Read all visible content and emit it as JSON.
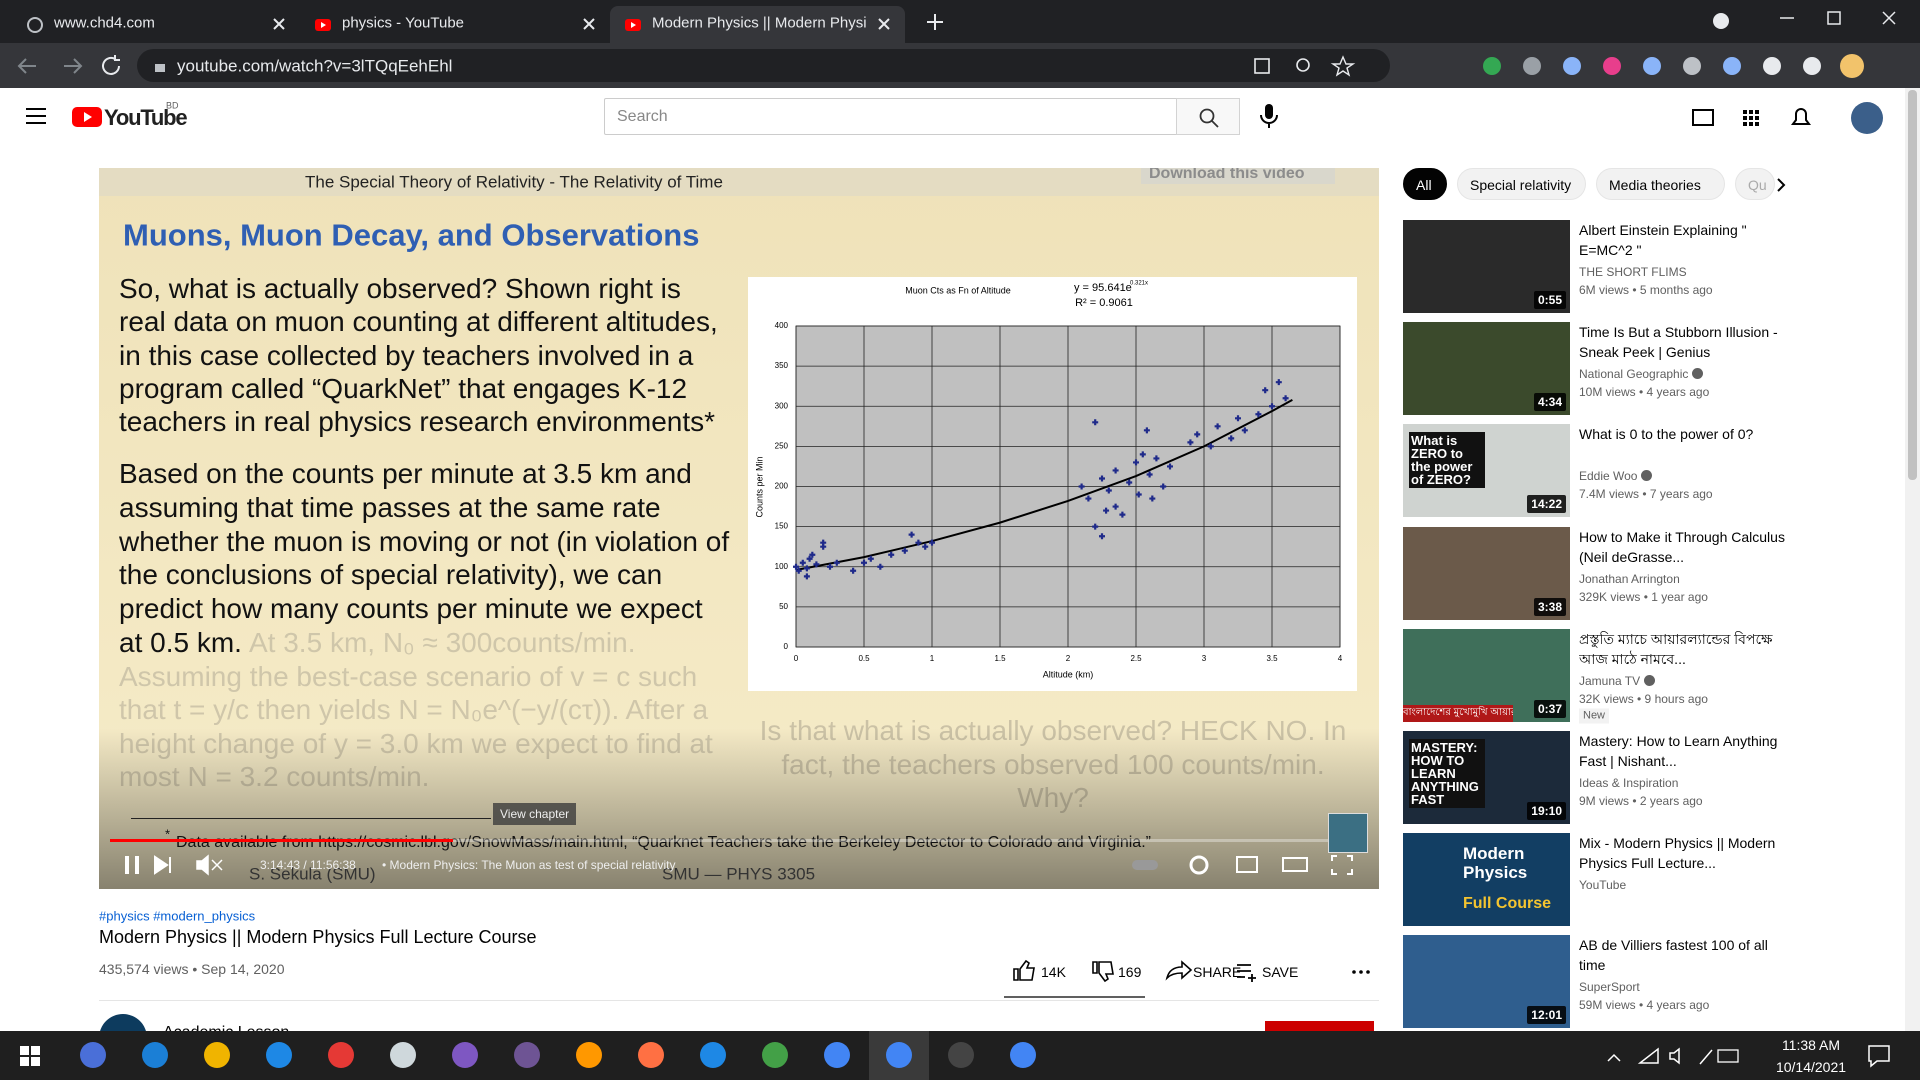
{
  "browser": {
    "tabs": [
      "www.chd4.com",
      "physics - YouTube",
      "Modern Physics || Modern Physic"
    ],
    "url": "youtube.com/watch?v=3lTQqEehEhl"
  },
  "header": {
    "logo": "YouTube",
    "country": "BD",
    "search": "Search"
  },
  "video": {
    "slide": {
      "banner": "The Special Theory of Relativity - The Relativity of Time",
      "download": "Download this video",
      "heading": "Muons, Muon Decay, and Observations",
      "para1": [
        "So, what is actually observed? Shown right is",
        "real data on muon counting at different altitudes,",
        "in this case collected by teachers involved in a",
        "program called “QuarkNet” that engages K-12",
        "teachers in real physics research environments*"
      ],
      "para2": [
        "Based on the counts per minute at 3.5 km and",
        "assuming that time passes at the same rate",
        "whether the muon is moving or not (in violation of",
        "the conclusions of special relativity), we can",
        "predict how many counts per minute we expect",
        "at 0.5 km."
      ],
      "para3": [
        "At 3.5 km, N₀ ≈ 300counts/min.",
        "Assuming the best-case scenario of v = c such",
        "that t = y/c then yields N = N₀e^(−y/(cτ)). After a",
        "height change of y = 3.0 km we expect to find at",
        "most N = 3.2 counts/min."
      ],
      "answer": [
        "Is that what is actually observed? HECK NO. In",
        "fact, the teachers observed 100 counts/min.",
        "Why?"
      ],
      "footnote_mark": "*",
      "footnote": "Data available from https://cosmic.lbl.gov/SnowMass/main.html, “Quarknet Teachers take the Berkeley Detector to Colorado and Virginia.”",
      "author": "S. Sekula (SMU)",
      "course": "SMU — PHYS 3305",
      "chart": {
        "type": "scatter",
        "title": "Muon Cts as Fn of Altitude",
        "equation": "y = 95.641e",
        "equation_exponent": "0.321x",
        "r_squared": "R² = 0.9061",
        "x_label": "Altitude (km)",
        "y_label": "Counts per Min",
        "xlim": [
          0,
          4
        ],
        "ylim": [
          0,
          400
        ],
        "xticks": [
          0,
          0.5,
          1,
          1.5,
          2,
          2.5,
          3,
          3.5,
          4
        ],
        "yticks": [
          0,
          50,
          100,
          150,
          200,
          250,
          300,
          350,
          400
        ],
        "grid": true,
        "color": "#1f2a8a",
        "x": [
          0,
          0.02,
          0.05,
          0.08,
          0.1,
          0.12,
          0.15,
          0.2,
          0.25,
          0.3,
          0.2,
          0.42,
          0.5,
          0.55,
          0.62,
          0.7,
          0.8,
          0.85,
          0.9,
          0.95,
          1.0,
          2.1,
          2.15,
          2.2,
          2.25,
          2.28,
          2.3,
          2.35,
          2.4,
          2.45,
          2.5,
          2.52,
          2.55,
          2.58,
          2.6,
          2.65,
          2.7,
          2.75,
          2.2,
          2.25,
          2.9,
          2.95,
          3.05,
          3.1,
          3.2,
          3.25,
          3.3,
          3.4,
          3.5,
          3.55,
          3.6,
          3.45,
          2.35,
          2.62,
          0.08
        ],
        "y": [
          100,
          95,
          105,
          98,
          110,
          115,
          103,
          125,
          100,
          105,
          130,
          95,
          105,
          110,
          100,
          115,
          120,
          140,
          130,
          125,
          130,
          200,
          185,
          280,
          210,
          170,
          195,
          220,
          165,
          205,
          230,
          190,
          240,
          270,
          215,
          235,
          200,
          225,
          150,
          138,
          255,
          265,
          250,
          275,
          260,
          285,
          270,
          290,
          300,
          330,
          310,
          320,
          175,
          185,
          88
        ],
        "trend": {
          "x": [
            0,
            0.5,
            1,
            1.5,
            2,
            2.5,
            3,
            3.5,
            3.65
          ],
          "y": [
            96,
            112,
            132,
            155,
            182,
            213,
            250,
            294,
            308
          ]
        }
      }
    },
    "controls": {
      "time": "3:14:43 / 11:56:38",
      "chapter": "• Modern Physics: The Muon as test of special relativity",
      "view_chapter": "View chapter"
    }
  },
  "below": {
    "hashtags": "#physics #modern_physics",
    "title": "Modern Physics || Modern Physics Full Lecture Course",
    "stats": "435,574 views • Sep 14, 2020",
    "likes": "14K",
    "dislikes": "169",
    "share": "SHARE",
    "save": "SAVE",
    "channel": "Academic Lesson"
  },
  "chips": [
    "All",
    "Special relativity",
    "Media theories",
    "Qu"
  ],
  "recommendations": [
    {
      "title": "Albert Einstein Explaining \" E=MC^2 \"",
      "channel": "THE SHORT FLIMS",
      "meta": "6M views • 5 months ago",
      "duration": "0:55",
      "verified": false,
      "thumb": "#2a2a2a"
    },
    {
      "title": "Time Is But a Stubborn Illusion - Sneak Peek | Genius",
      "channel": "National Geographic",
      "meta": "10M views • 4 years ago",
      "duration": "4:34",
      "verified": true,
      "thumb": "#3b4a2c"
    },
    {
      "title": "What is 0 to the power of 0?",
      "channel": "Eddie Woo",
      "meta": "7.4M views • 7 years ago",
      "duration": "14:22",
      "verified": true,
      "thumb": "#cfd3d0",
      "thumb_text": "What is ZERO to the power of ZERO?"
    },
    {
      "title": "How to Make it Through Calculus (Neil deGrasse...",
      "channel": "Jonathan Arrington",
      "meta": "329K views • 1 year ago",
      "duration": "3:38",
      "verified": false,
      "thumb": "#6b5a4a"
    },
    {
      "title": "প্রস্তুতি ম্যাচে আয়ারল্যান্ডের বিপক্ষে আজ মাঠে নামবে...",
      "channel": "Jamuna TV",
      "meta": "32K views • 9 hours ago",
      "duration": "0:37",
      "verified": true,
      "badge": "New",
      "thumb": "#3f6f5a",
      "thumb_text": "বাংলাদেশের মুখোমুখি আয়ারল্যান্ড"
    },
    {
      "title": "Mastery: How to Learn Anything Fast | Nishant...",
      "channel": "Ideas & Inspiration",
      "meta": "9M views • 2 years ago",
      "duration": "19:10",
      "verified": false,
      "thumb": "#1c2a3a",
      "thumb_text": "MASTERY: HOW TO LEARN ANYTHING FAST"
    },
    {
      "title": "Mix - Modern Physics || Modern Physics Full Lecture...",
      "channel": "YouTube",
      "verified": false,
      "thumb": "#123e63",
      "thumb_text": "Modern Physics",
      "thumb_text2": "Full Course"
    },
    {
      "title": "AB de Villiers fastest 100 of all time",
      "channel": "SuperSport",
      "meta": "59M views • 4 years ago",
      "duration": "12:01",
      "verified": false,
      "thumb": "#2f5e8e"
    }
  ],
  "taskbar": {
    "time": "11:38 AM",
    "date": "10/14/2021"
  }
}
